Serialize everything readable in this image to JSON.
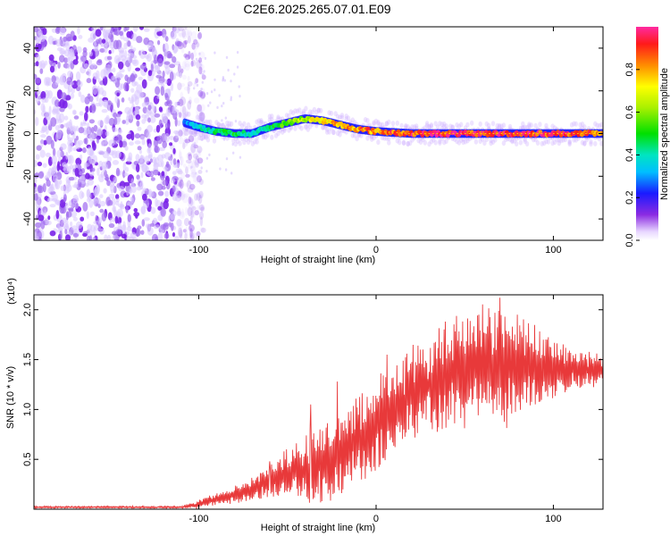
{
  "title": "C2E6.2025.265.07.01.E09",
  "chart_data": [
    {
      "type": "heatmap",
      "xlabel": "Height of straight line (km)",
      "ylabel": "Frequency (Hz)",
      "xlim": [
        -193,
        128
      ],
      "ylim": [
        -50,
        50
      ],
      "x_ticks": [
        -100,
        0,
        100
      ],
      "x_tick_labels": [
        "-100",
        "0",
        "100"
      ],
      "y_ticks": [
        -40,
        -20,
        0,
        20,
        40
      ],
      "y_tick_labels": [
        "-40",
        "-20",
        "0",
        "20",
        "40"
      ],
      "noise_region_x": [
        -193,
        -105
      ],
      "ridge": {
        "description": "strong narrow ridge in normalized spectral amplitude",
        "x": [
          -108,
          -100,
          -90,
          -80,
          -70,
          -60,
          -50,
          -40,
          -30,
          -20,
          -10,
          0,
          10,
          20,
          40,
          60,
          80,
          100,
          128
        ],
        "freq": [
          5,
          3,
          1,
          0,
          0,
          3,
          5,
          7,
          6,
          4,
          2,
          1,
          0.5,
          0,
          0,
          0,
          0,
          0,
          0
        ],
        "amplitude": [
          0.3,
          0.4,
          0.5,
          0.5,
          0.4,
          0.5,
          0.6,
          0.7,
          0.8,
          0.85,
          0.9,
          0.9,
          0.95,
          1.0,
          1.0,
          1.0,
          1.0,
          1.0,
          0.9
        ]
      }
    },
    {
      "type": "colorbar",
      "label": "Normalized spectral amplitude",
      "range": [
        0,
        1
      ],
      "ticks": [
        0.0,
        0.2,
        0.4,
        0.6,
        0.8
      ],
      "tick_labels": [
        "0.0",
        "0.2",
        "0.4",
        "0.6",
        "0.8"
      ]
    },
    {
      "type": "line",
      "xlabel": "Height of straight line (km)",
      "ylabel": "SNR (10 * v/v)",
      "y_scale_label": "(x10⁴)",
      "xlim": [
        -193,
        128
      ],
      "ylim": [
        0,
        2.15
      ],
      "x_ticks": [
        -100,
        0,
        100
      ],
      "x_tick_labels": [
        "-100",
        "0",
        "100"
      ],
      "y_ticks": [
        0.5,
        1.0,
        1.5,
        2.0
      ],
      "y_tick_labels": [
        "0.5",
        "1.0",
        "1.5",
        "2.0"
      ],
      "color": "#e8393a",
      "envelope": {
        "x": [
          -193,
          -110,
          -100,
          -90,
          -80,
          -70,
          -60,
          -50,
          -40,
          -30,
          -20,
          -10,
          0,
          10,
          20,
          30,
          40,
          50,
          60,
          70,
          80,
          90,
          100,
          110,
          128
        ],
        "mean": [
          0.02,
          0.02,
          0.05,
          0.1,
          0.15,
          0.2,
          0.28,
          0.35,
          0.4,
          0.45,
          0.55,
          0.7,
          0.85,
          1.0,
          1.15,
          1.25,
          1.35,
          1.4,
          1.45,
          1.45,
          1.45,
          1.4,
          1.4,
          1.4,
          1.4
        ],
        "spread": [
          0.01,
          0.01,
          0.04,
          0.06,
          0.08,
          0.12,
          0.15,
          0.25,
          0.35,
          0.4,
          0.4,
          0.45,
          0.45,
          0.45,
          0.45,
          0.45,
          0.5,
          0.55,
          0.6,
          0.6,
          0.5,
          0.4,
          0.3,
          0.2,
          0.15
        ]
      },
      "peaks": [
        {
          "x": -60,
          "y": 0.48
        },
        {
          "x": -37,
          "y": 1.05
        },
        {
          "x": -22,
          "y": 1.28
        },
        {
          "x": 6,
          "y": 1.55
        },
        {
          "x": 58,
          "y": 1.95
        },
        {
          "x": 70,
          "y": 2.12
        }
      ]
    }
  ]
}
